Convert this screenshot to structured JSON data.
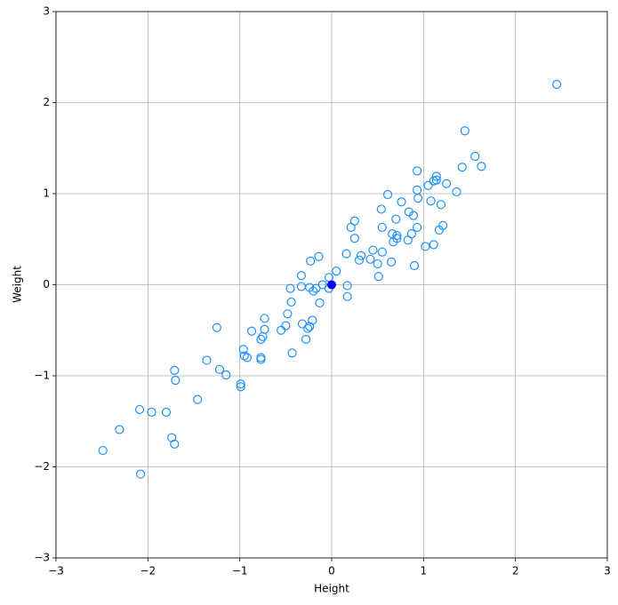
{
  "chart_data": {
    "type": "scatter",
    "xlabel": "Height",
    "ylabel": "Weight",
    "xlim": [
      -3,
      3
    ],
    "ylim": [
      -3,
      3
    ],
    "xticks": [
      {
        "value": -3,
        "label": "−3"
      },
      {
        "value": -2,
        "label": "−2"
      },
      {
        "value": -1,
        "label": "−1"
      },
      0,
      1,
      2,
      3
    ],
    "yticks": [
      {
        "value": -3,
        "label": "−3"
      },
      {
        "value": -2,
        "label": "−2"
      },
      {
        "value": -1,
        "label": "−1"
      },
      0,
      1,
      2,
      3
    ],
    "grid": true,
    "color": "#1e90ff",
    "x": [
      2.45,
      1.45,
      1.56,
      1.63,
      1.42,
      0.93,
      1.14,
      1.11,
      1.14,
      1.25,
      1.05,
      0.93,
      1.36,
      0.61,
      0.94,
      1.08,
      0.76,
      1.19,
      0.54,
      0.84,
      0.89,
      0.7,
      0.25,
      1.21,
      0.21,
      0.55,
      0.93,
      1.17,
      0.87,
      0.66,
      0.71,
      0.25,
      0.71,
      0.83,
      0.67,
      1.11,
      1.02,
      0.45,
      0.55,
      0.16,
      0.32,
      -0.14,
      0.42,
      0.3,
      -0.23,
      0.65,
      0.5,
      0.9,
      0.05,
      -0.33,
      0.51,
      -0.03,
      -0.1,
      0.17,
      -0.33,
      -0.24,
      -0.03,
      -0.45,
      -0.17,
      -0.2,
      0.17,
      -0.44,
      -0.13,
      -0.48,
      -0.73,
      -0.21,
      -0.32,
      -0.5,
      -0.24,
      -0.26,
      -1.25,
      -0.73,
      -0.55,
      -0.87,
      -0.75,
      -0.77,
      -0.28,
      -0.96,
      -0.43,
      -0.95,
      -0.92,
      -0.77,
      -0.77,
      -1.36,
      -1.22,
      -1.71,
      -1.15,
      -1.7,
      -0.99,
      -0.99,
      -1.46,
      -2.09,
      -1.96,
      -1.8,
      -2.31,
      -1.74,
      -1.71,
      -2.49,
      -2.08
    ],
    "y": [
      2.2,
      1.69,
      1.41,
      1.3,
      1.29,
      1.25,
      1.19,
      1.14,
      1.15,
      1.11,
      1.09,
      1.04,
      1.02,
      0.99,
      0.95,
      0.92,
      0.91,
      0.88,
      0.83,
      0.8,
      0.76,
      0.72,
      0.7,
      0.65,
      0.63,
      0.63,
      0.63,
      0.6,
      0.56,
      0.56,
      0.54,
      0.51,
      0.51,
      0.49,
      0.47,
      0.44,
      0.42,
      0.38,
      0.36,
      0.34,
      0.32,
      0.31,
      0.28,
      0.27,
      0.26,
      0.25,
      0.23,
      0.21,
      0.15,
      0.1,
      0.09,
      0.08,
      0.0,
      -0.01,
      -0.02,
      -0.03,
      -0.04,
      -0.04,
      -0.04,
      -0.07,
      -0.13,
      -0.19,
      -0.2,
      -0.32,
      -0.37,
      -0.39,
      -0.43,
      -0.45,
      -0.46,
      -0.48,
      -0.47,
      -0.49,
      -0.5,
      -0.51,
      -0.57,
      -0.6,
      -0.6,
      -0.71,
      -0.75,
      -0.78,
      -0.8,
      -0.8,
      -0.82,
      -0.83,
      -0.93,
      -0.94,
      -0.99,
      -1.05,
      -1.09,
      -1.12,
      -1.26,
      -1.37,
      -1.4,
      -1.4,
      -1.59,
      -1.68,
      -1.75,
      -1.82,
      -2.08
    ],
    "highlight": {
      "x": 0,
      "y": 0,
      "color": "#0000ff"
    }
  }
}
